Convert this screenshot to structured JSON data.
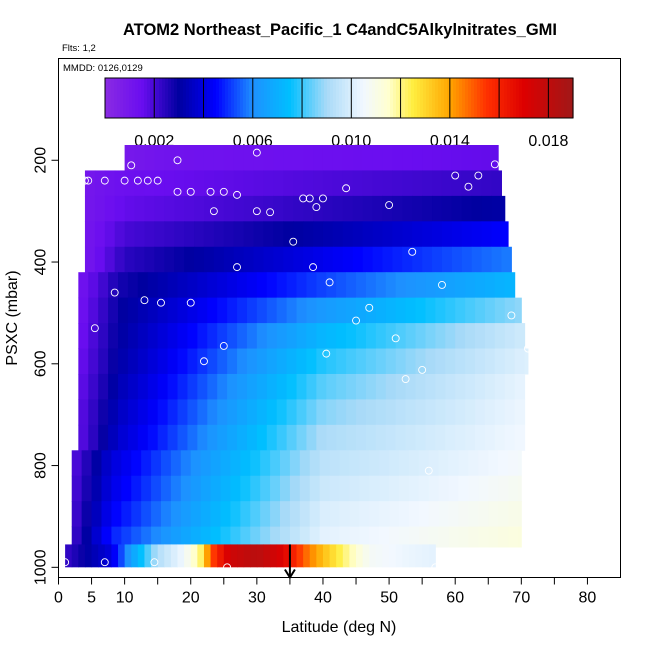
{
  "chart_data": {
    "type": "heatmap",
    "title": "ATOM2 Northeast_Pacific_1 C4andC5Alkylnitrates_GMI",
    "annotations": [
      "Flts: 1,2",
      "MMDD: 0126,0129"
    ],
    "xlabel": "Latitude (deg N)",
    "ylabel": "PSXC (mbar)",
    "xlim": [
      0,
      85
    ],
    "ylim": [
      1020,
      0
    ],
    "x_ticks": [
      0,
      5,
      10,
      20,
      30,
      40,
      50,
      60,
      70,
      80
    ],
    "x_minor_ticks": [
      15,
      25,
      35,
      45,
      55,
      65,
      75
    ],
    "y_ticks": [
      200,
      400,
      600,
      800,
      1000
    ],
    "colorbar": {
      "range": [
        0,
        0.019
      ],
      "tick_labels": [
        "0.002",
        "0.006",
        "0.010",
        "0.014",
        "0.018"
      ],
      "tick_values": [
        0.002,
        0.006,
        0.01,
        0.014,
        0.018
      ],
      "segment_bounds": [
        0.002,
        0.004,
        0.006,
        0.008,
        0.01,
        0.012,
        0.014,
        0.016,
        0.018
      ],
      "stops": [
        {
          "value": 0.0,
          "color": "#8a2be2"
        },
        {
          "value": 0.0015,
          "color": "#6a0df0"
        },
        {
          "value": 0.003,
          "color": "#0000a0"
        },
        {
          "value": 0.0045,
          "color": "#0000ff"
        },
        {
          "value": 0.006,
          "color": "#1e90ff"
        },
        {
          "value": 0.0075,
          "color": "#00bfff"
        },
        {
          "value": 0.009,
          "color": "#a8daf8"
        },
        {
          "value": 0.0105,
          "color": "#f2f8ff"
        },
        {
          "value": 0.0115,
          "color": "#ffffd0"
        },
        {
          "value": 0.0125,
          "color": "#ffee40"
        },
        {
          "value": 0.014,
          "color": "#ffa500"
        },
        {
          "value": 0.0155,
          "color": "#ff3000"
        },
        {
          "value": 0.017,
          "color": "#dd0000"
        },
        {
          "value": 0.019,
          "color": "#a01818"
        }
      ]
    },
    "levels": [
      {
        "p_top": 170,
        "p_bot": 220,
        "x_start": 10,
        "x_end": 66.5,
        "edge": 0.0009,
        "inner": 0.0012,
        "x_mid": 40,
        "mid": 0.0014,
        "x_east": 66.5,
        "east": 0.0016
      },
      {
        "p_top": 220,
        "p_bot": 270,
        "x_start": 4,
        "x_end": 67,
        "edge": 0.001,
        "inner": 0.0014,
        "x_mid": 40,
        "mid": 0.0019,
        "x_east": 67,
        "east": 0.0023
      },
      {
        "p_top": 270,
        "p_bot": 320,
        "x_start": 4,
        "x_end": 67.5,
        "edge": 0.001,
        "inner": 0.0016,
        "x_mid": 40,
        "mid": 0.0024,
        "x_east": 67.5,
        "east": 0.0031
      },
      {
        "p_top": 320,
        "p_bot": 370,
        "x_start": 4,
        "x_end": 68,
        "edge": 0.001,
        "inner": 0.002,
        "x_mid": 40,
        "mid": 0.0032,
        "x_east": 68,
        "east": 0.0045
      },
      {
        "p_top": 370,
        "p_bot": 420,
        "x_start": 4,
        "x_end": 68.5,
        "edge": 0.001,
        "inner": 0.0024,
        "x_mid": 40,
        "mid": 0.0042,
        "x_east": 68.5,
        "east": 0.0058
      },
      {
        "p_top": 420,
        "p_bot": 470,
        "x_start": 3,
        "x_end": 69,
        "edge": 0.0011,
        "inner": 0.0027,
        "x_mid": 40,
        "mid": 0.0052,
        "x_east": 69,
        "east": 0.0072
      },
      {
        "p_top": 470,
        "p_bot": 520,
        "x_start": 3,
        "x_end": 70,
        "edge": 0.0012,
        "inner": 0.0029,
        "x_mid": 40,
        "mid": 0.0063,
        "x_east": 70,
        "east": 0.0088
      },
      {
        "p_top": 520,
        "p_bot": 570,
        "x_start": 3,
        "x_end": 70.5,
        "edge": 0.0013,
        "inner": 0.003,
        "x_mid": 40,
        "mid": 0.0072,
        "x_east": 70.5,
        "east": 0.0098
      },
      {
        "p_top": 570,
        "p_bot": 620,
        "x_start": 3,
        "x_end": 71,
        "edge": 0.0014,
        "inner": 0.0031,
        "x_mid": 40,
        "mid": 0.0078,
        "x_east": 71,
        "east": 0.0101
      },
      {
        "p_top": 620,
        "p_bot": 670,
        "x_start": 3,
        "x_end": 70.5,
        "edge": 0.0015,
        "inner": 0.0033,
        "x_mid": 40,
        "mid": 0.0083,
        "x_east": 70.5,
        "east": 0.0103
      },
      {
        "p_top": 670,
        "p_bot": 720,
        "x_start": 3,
        "x_end": 70.5,
        "edge": 0.0016,
        "inner": 0.0035,
        "x_mid": 40,
        "mid": 0.0087,
        "x_east": 70.5,
        "east": 0.0104
      },
      {
        "p_top": 720,
        "p_bot": 770,
        "x_start": 3,
        "x_end": 70.5,
        "edge": 0.0016,
        "inner": 0.0037,
        "x_mid": 40,
        "mid": 0.0091,
        "x_east": 70.5,
        "east": 0.0105
      },
      {
        "p_top": 770,
        "p_bot": 820,
        "x_start": 2,
        "x_end": 70,
        "edge": 0.0017,
        "inner": 0.0039,
        "x_mid": 40,
        "mid": 0.0094,
        "x_east": 70,
        "east": 0.0106
      },
      {
        "p_top": 820,
        "p_bot": 870,
        "x_start": 2,
        "x_end": 70,
        "edge": 0.0018,
        "inner": 0.0041,
        "x_mid": 40,
        "mid": 0.0097,
        "x_east": 70,
        "east": 0.0108
      },
      {
        "p_top": 870,
        "p_bot": 920,
        "x_start": 2,
        "x_end": 70,
        "edge": 0.0019,
        "inner": 0.0044,
        "x_mid": 40,
        "mid": 0.01,
        "x_east": 70,
        "east": 0.011
      },
      {
        "p_top": 920,
        "p_bot": 960,
        "x_start": 2,
        "x_end": 70,
        "edge": 0.002,
        "inner": 0.0048,
        "x_mid": 40,
        "mid": 0.0102,
        "x_east": 70,
        "east": 0.0112
      }
    ],
    "surface_row": {
      "p_top": 955,
      "p_bot": 1000,
      "x_start": 1,
      "x_end": 57,
      "profile": [
        {
          "x": 1,
          "v": 0.0022
        },
        {
          "x": 8,
          "v": 0.004
        },
        {
          "x": 11,
          "v": 0.0065
        },
        {
          "x": 15,
          "v": 0.0092
        },
        {
          "x": 19,
          "v": 0.0105
        },
        {
          "x": 21.5,
          "v": 0.0122
        },
        {
          "x": 23,
          "v": 0.015
        },
        {
          "x": 26,
          "v": 0.0175
        },
        {
          "x": 30,
          "v": 0.0182
        },
        {
          "x": 34,
          "v": 0.017
        },
        {
          "x": 37,
          "v": 0.015
        },
        {
          "x": 40,
          "v": 0.0135
        },
        {
          "x": 44,
          "v": 0.0118
        },
        {
          "x": 47,
          "v": 0.0107
        },
        {
          "x": 52,
          "v": 0.0104
        },
        {
          "x": 57,
          "v": 0.0102
        }
      ]
    },
    "points": [
      {
        "lat": 11,
        "p": 210
      },
      {
        "lat": 18,
        "p": 200
      },
      {
        "lat": 30,
        "p": 185
      },
      {
        "lat": 66,
        "p": 208
      },
      {
        "lat": 4,
        "p": 240
      },
      {
        "lat": 4.5,
        "p": 240
      },
      {
        "lat": 7,
        "p": 240
      },
      {
        "lat": 10,
        "p": 240
      },
      {
        "lat": 12,
        "p": 240
      },
      {
        "lat": 13.5,
        "p": 240
      },
      {
        "lat": 15,
        "p": 240
      },
      {
        "lat": 18,
        "p": 262
      },
      {
        "lat": 20,
        "p": 262
      },
      {
        "lat": 23,
        "p": 262
      },
      {
        "lat": 25,
        "p": 262
      },
      {
        "lat": 27,
        "p": 268
      },
      {
        "lat": 23.5,
        "p": 300
      },
      {
        "lat": 30,
        "p": 300
      },
      {
        "lat": 32,
        "p": 302
      },
      {
        "lat": 37,
        "p": 275
      },
      {
        "lat": 38,
        "p": 275
      },
      {
        "lat": 39,
        "p": 292
      },
      {
        "lat": 40,
        "p": 275
      },
      {
        "lat": 43.5,
        "p": 255
      },
      {
        "lat": 50,
        "p": 288
      },
      {
        "lat": 60,
        "p": 230
      },
      {
        "lat": 62,
        "p": 252
      },
      {
        "lat": 63.5,
        "p": 230
      },
      {
        "lat": 35.5,
        "p": 360
      },
      {
        "lat": 53.5,
        "p": 380
      },
      {
        "lat": 27,
        "p": 410
      },
      {
        "lat": 38.5,
        "p": 410
      },
      {
        "lat": 41,
        "p": 440
      },
      {
        "lat": 58,
        "p": 445
      },
      {
        "lat": 8.5,
        "p": 460
      },
      {
        "lat": 2,
        "p": 480
      },
      {
        "lat": 2.2,
        "p": 485
      },
      {
        "lat": 13,
        "p": 475
      },
      {
        "lat": 15.5,
        "p": 480
      },
      {
        "lat": 20,
        "p": 480
      },
      {
        "lat": 47,
        "p": 490
      },
      {
        "lat": 45,
        "p": 515
      },
      {
        "lat": 68.5,
        "p": 505
      },
      {
        "lat": 5.5,
        "p": 530
      },
      {
        "lat": 51,
        "p": 550
      },
      {
        "lat": 25,
        "p": 565
      },
      {
        "lat": 40.5,
        "p": 580
      },
      {
        "lat": 71,
        "p": 570
      },
      {
        "lat": 22,
        "p": 595
      },
      {
        "lat": 55,
        "p": 612
      },
      {
        "lat": 52.5,
        "p": 630
      },
      {
        "lat": 56,
        "p": 810
      },
      {
        "lat": 1,
        "p": 990
      },
      {
        "lat": 7,
        "p": 990
      },
      {
        "lat": 14.5,
        "p": 990
      },
      {
        "lat": 25.5,
        "p": 1000
      },
      {
        "lat": 57,
        "p": 1000
      }
    ],
    "arrow": {
      "lat": 35,
      "p_from": 955,
      "p_to": 1020
    }
  }
}
